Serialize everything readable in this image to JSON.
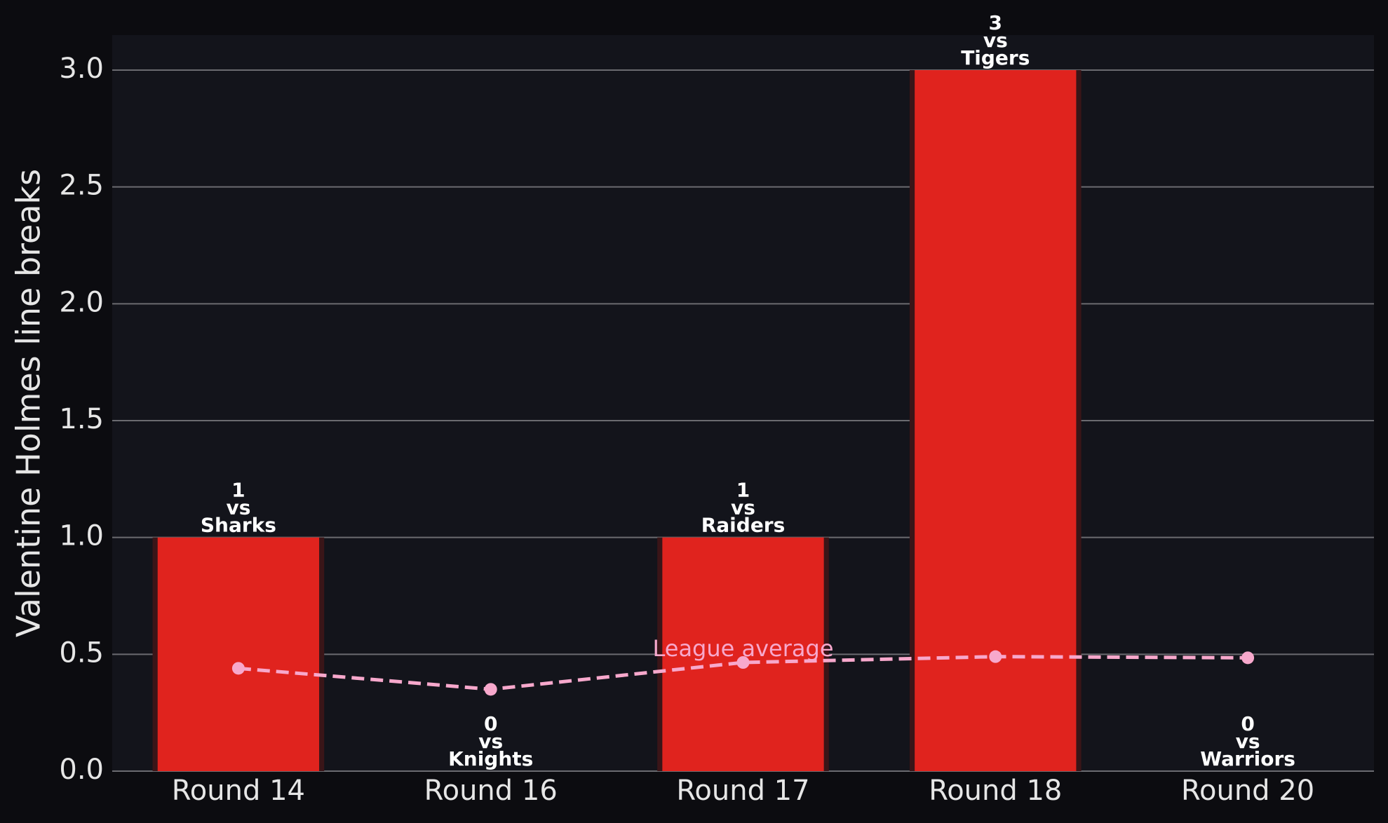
{
  "chart_data": {
    "type": "bar",
    "y_label": "Valentine Holmes line breaks",
    "categories": [
      "Round 14",
      "Round 16",
      "Round 17",
      "Round 18",
      "Round 20"
    ],
    "values": [
      1,
      0,
      1,
      3,
      0
    ],
    "opponents": [
      "Sharks",
      "Knights",
      "Raiders",
      "Tigers",
      "Warriors"
    ],
    "versus": "vs",
    "color": "#e0231e",
    "league_average": {
      "name": "League average",
      "color": "#f7a8cc",
      "values": [
        0.44,
        0.35,
        0.465,
        0.49,
        0.485
      ]
    },
    "ylim": [
      0,
      3.15
    ],
    "yticks": [
      {
        "value": 0,
        "label": "0.0"
      },
      0.5,
      {
        "value": 1,
        "label": "1.0"
      },
      1.5,
      {
        "value": 2,
        "label": "2.0"
      },
      2.5,
      {
        "value": 3,
        "label": "3.0"
      }
    ],
    "grid": true
  }
}
